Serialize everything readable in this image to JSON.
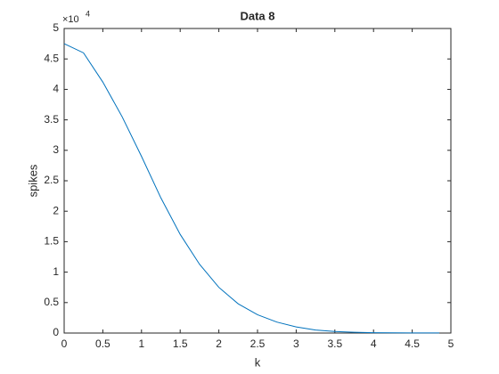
{
  "chart_data": {
    "type": "line",
    "title": "Data 8",
    "x_label": "k",
    "y_label": "spikes",
    "y_multiplier": "×10",
    "y_exponent": "4",
    "x": [
      0,
      0.25,
      0.5,
      0.75,
      1.0,
      1.25,
      1.5,
      1.75,
      2.0,
      2.25,
      2.5,
      2.75,
      3.0,
      3.25,
      3.5,
      3.75,
      4.0,
      4.25,
      4.5,
      4.85
    ],
    "series": [
      {
        "name": "spikes",
        "color": "#0072bd",
        "values": [
          4.75,
          4.6,
          4.12,
          3.55,
          2.9,
          2.22,
          1.62,
          1.13,
          0.75,
          0.48,
          0.3,
          0.18,
          0.1,
          0.05,
          0.025,
          0.013,
          0.006,
          0.003,
          0.002,
          0.001
        ]
      }
    ],
    "xlim": [
      0,
      5
    ],
    "xticks": [
      0,
      0.5,
      1,
      1.5,
      2,
      2.5,
      3,
      3.5,
      4,
      4.5,
      5
    ],
    "ylim": [
      0,
      5
    ],
    "yticks": [
      0,
      0.5,
      1,
      1.5,
      2,
      2.5,
      3,
      3.5,
      4,
      4.5,
      5
    ]
  }
}
